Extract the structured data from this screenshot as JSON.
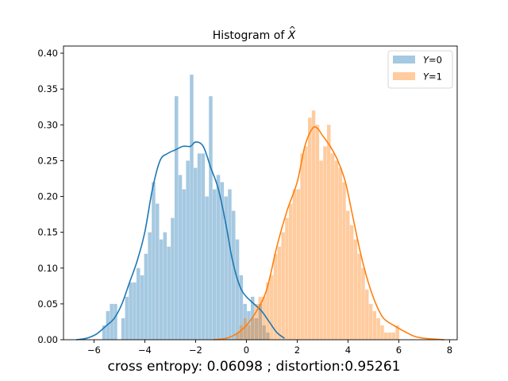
{
  "caption": "cross entropy: 0.06098 ; distortion:0.95261",
  "chart_data": {
    "type": "bar",
    "title_prefix": "Histogram of ",
    "title_symbol": "X",
    "title_accent": "^",
    "xlim": [
      -7.2,
      8.3
    ],
    "ylim": [
      0,
      0.41
    ],
    "xticks": [
      -6,
      -4,
      -2,
      0,
      2,
      4,
      6,
      8
    ],
    "yticks": [
      0.0,
      0.05,
      0.1,
      0.15,
      0.2,
      0.25,
      0.3,
      0.35,
      0.4
    ],
    "ytick_labels": [
      "0.00",
      "0.05",
      "0.10",
      "0.15",
      "0.20",
      "0.25",
      "0.30",
      "0.35",
      "0.40"
    ],
    "legend_position": "top-right",
    "grid": false,
    "series": [
      {
        "name_var": "Y",
        "name_value": "=0",
        "color": "#1f77b4",
        "bin_width": 0.15,
        "bins": [
          [
            -5.6,
            0.02
          ],
          [
            -5.45,
            0.04
          ],
          [
            -5.3,
            0.05
          ],
          [
            -5.15,
            0.05
          ],
          [
            -5.0,
            0.0
          ],
          [
            -4.85,
            0.03
          ],
          [
            -4.7,
            0.06
          ],
          [
            -4.55,
            0.08
          ],
          [
            -4.4,
            0.08
          ],
          [
            -4.25,
            0.1
          ],
          [
            -4.1,
            0.09
          ],
          [
            -3.95,
            0.12
          ],
          [
            -3.8,
            0.15
          ],
          [
            -3.65,
            0.22
          ],
          [
            -3.5,
            0.19
          ],
          [
            -3.35,
            0.14
          ],
          [
            -3.2,
            0.15
          ],
          [
            -3.05,
            0.13
          ],
          [
            -2.9,
            0.17
          ],
          [
            -2.75,
            0.34
          ],
          [
            -2.6,
            0.23
          ],
          [
            -2.45,
            0.21
          ],
          [
            -2.3,
            0.25
          ],
          [
            -2.15,
            0.37
          ],
          [
            -2.0,
            0.24
          ],
          [
            -1.85,
            0.26
          ],
          [
            -1.7,
            0.26
          ],
          [
            -1.55,
            0.2
          ],
          [
            -1.4,
            0.34
          ],
          [
            -1.25,
            0.21
          ],
          [
            -1.1,
            0.23
          ],
          [
            -0.95,
            0.22
          ],
          [
            -0.8,
            0.2
          ],
          [
            -0.65,
            0.21
          ],
          [
            -0.5,
            0.18
          ],
          [
            -0.35,
            0.14
          ],
          [
            -0.2,
            0.09
          ],
          [
            -0.05,
            0.05
          ],
          [
            0.1,
            0.04
          ],
          [
            0.25,
            0.06
          ],
          [
            0.4,
            0.03
          ],
          [
            0.55,
            0.05
          ],
          [
            0.7,
            0.02
          ],
          [
            0.85,
            0.01
          ]
        ],
        "kde": [
          [
            -6.7,
            0.0
          ],
          [
            -6.3,
            0.002
          ],
          [
            -5.9,
            0.008
          ],
          [
            -5.5,
            0.02
          ],
          [
            -5.2,
            0.03
          ],
          [
            -4.9,
            0.05
          ],
          [
            -4.6,
            0.08
          ],
          [
            -4.3,
            0.11
          ],
          [
            -4.0,
            0.15
          ],
          [
            -3.7,
            0.21
          ],
          [
            -3.4,
            0.25
          ],
          [
            -3.1,
            0.26
          ],
          [
            -2.8,
            0.265
          ],
          [
            -2.5,
            0.27
          ],
          [
            -2.2,
            0.27
          ],
          [
            -2.0,
            0.276
          ],
          [
            -1.7,
            0.27
          ],
          [
            -1.4,
            0.24
          ],
          [
            -1.1,
            0.21
          ],
          [
            -0.8,
            0.16
          ],
          [
            -0.6,
            0.12
          ],
          [
            -0.4,
            0.09
          ],
          [
            -0.2,
            0.07
          ],
          [
            0.0,
            0.06
          ],
          [
            0.3,
            0.05
          ],
          [
            0.6,
            0.04
          ],
          [
            0.9,
            0.025
          ],
          [
            1.2,
            0.01
          ],
          [
            1.5,
            0.002
          ]
        ]
      },
      {
        "name_var": "Y",
        "name_value": "=1",
        "color": "#ff7f0e",
        "bin_width": 0.15,
        "bins": [
          [
            -0.35,
            0.01
          ],
          [
            -0.2,
            0.02
          ],
          [
            -0.05,
            0.03
          ],
          [
            0.1,
            0.02
          ],
          [
            0.25,
            0.03
          ],
          [
            0.4,
            0.05
          ],
          [
            0.55,
            0.06
          ],
          [
            0.7,
            0.06
          ],
          [
            0.85,
            0.08
          ],
          [
            1.0,
            0.09
          ],
          [
            1.15,
            0.12
          ],
          [
            1.3,
            0.13
          ],
          [
            1.45,
            0.15
          ],
          [
            1.6,
            0.17
          ],
          [
            1.75,
            0.19
          ],
          [
            1.9,
            0.21
          ],
          [
            2.05,
            0.21
          ],
          [
            2.2,
            0.26
          ],
          [
            2.35,
            0.27
          ],
          [
            2.5,
            0.31
          ],
          [
            2.65,
            0.32
          ],
          [
            2.8,
            0.3
          ],
          [
            2.95,
            0.25
          ],
          [
            3.1,
            0.27
          ],
          [
            3.25,
            0.3
          ],
          [
            3.4,
            0.26
          ],
          [
            3.55,
            0.25
          ],
          [
            3.7,
            0.24
          ],
          [
            3.85,
            0.22
          ],
          [
            4.0,
            0.18
          ],
          [
            4.15,
            0.16
          ],
          [
            4.3,
            0.14
          ],
          [
            4.45,
            0.12
          ],
          [
            4.6,
            0.1
          ],
          [
            4.75,
            0.07
          ],
          [
            4.9,
            0.05
          ],
          [
            5.05,
            0.04
          ],
          [
            5.2,
            0.03
          ],
          [
            5.35,
            0.02
          ],
          [
            5.5,
            0.01
          ],
          [
            5.65,
            0.01
          ],
          [
            5.8,
            0.01
          ],
          [
            5.95,
            0.02
          ]
        ],
        "kde": [
          [
            -1.3,
            0.0
          ],
          [
            -0.8,
            0.002
          ],
          [
            -0.4,
            0.008
          ],
          [
            0.0,
            0.02
          ],
          [
            0.4,
            0.04
          ],
          [
            0.8,
            0.07
          ],
          [
            1.2,
            0.13
          ],
          [
            1.6,
            0.18
          ],
          [
            2.0,
            0.22
          ],
          [
            2.3,
            0.27
          ],
          [
            2.6,
            0.295
          ],
          [
            2.8,
            0.295
          ],
          [
            3.0,
            0.285
          ],
          [
            3.3,
            0.27
          ],
          [
            3.6,
            0.25
          ],
          [
            3.9,
            0.22
          ],
          [
            4.2,
            0.17
          ],
          [
            4.5,
            0.12
          ],
          [
            4.8,
            0.08
          ],
          [
            5.1,
            0.05
          ],
          [
            5.4,
            0.03
          ],
          [
            5.8,
            0.02
          ],
          [
            6.2,
            0.012
          ],
          [
            6.6,
            0.005
          ],
          [
            7.0,
            0.002
          ],
          [
            7.8,
            0.0
          ]
        ]
      }
    ]
  }
}
